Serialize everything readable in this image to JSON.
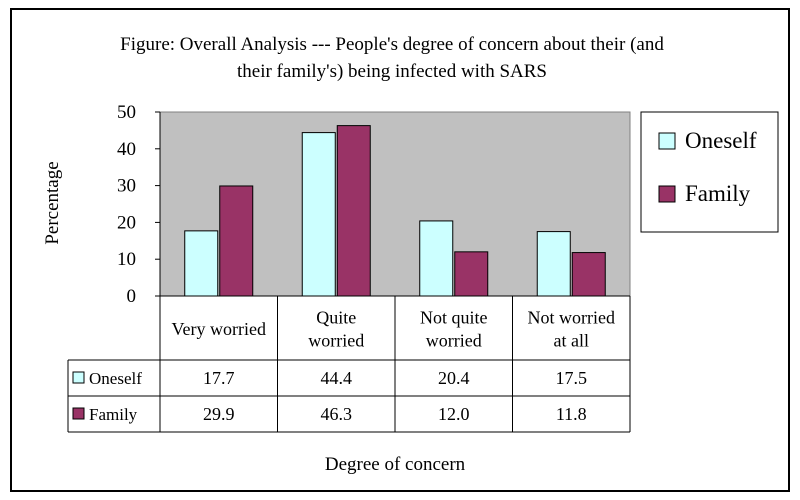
{
  "chart_data": {
    "type": "bar",
    "title_line1": "Figure: Overall Analysis --- People's degree of concern about their (and",
    "title_line2": "their family's) being infected with SARS",
    "xlabel": "Degree of concern",
    "ylabel": "Percentage",
    "ylim": [
      0,
      50
    ],
    "yticks": [
      0,
      10,
      20,
      30,
      40,
      50
    ],
    "grid": false,
    "legend_position": "right",
    "categories": [
      [
        "Very worried"
      ],
      [
        "Quite",
        "worried"
      ],
      [
        "Not quite",
        "worried"
      ],
      [
        "Not worried",
        "at all"
      ]
    ],
    "series": [
      {
        "name": "Oneself",
        "color": "#ccffff",
        "values": [
          17.7,
          44.4,
          20.4,
          17.5
        ],
        "labels": [
          "17.7",
          "44.4",
          "20.4",
          "17.5"
        ]
      },
      {
        "name": "Family",
        "color": "#993366",
        "values": [
          29.9,
          46.3,
          12.0,
          11.8
        ],
        "labels": [
          "29.9",
          "46.3",
          "12.0",
          "11.8"
        ]
      }
    ],
    "plot_background": "#c0c0c0"
  }
}
